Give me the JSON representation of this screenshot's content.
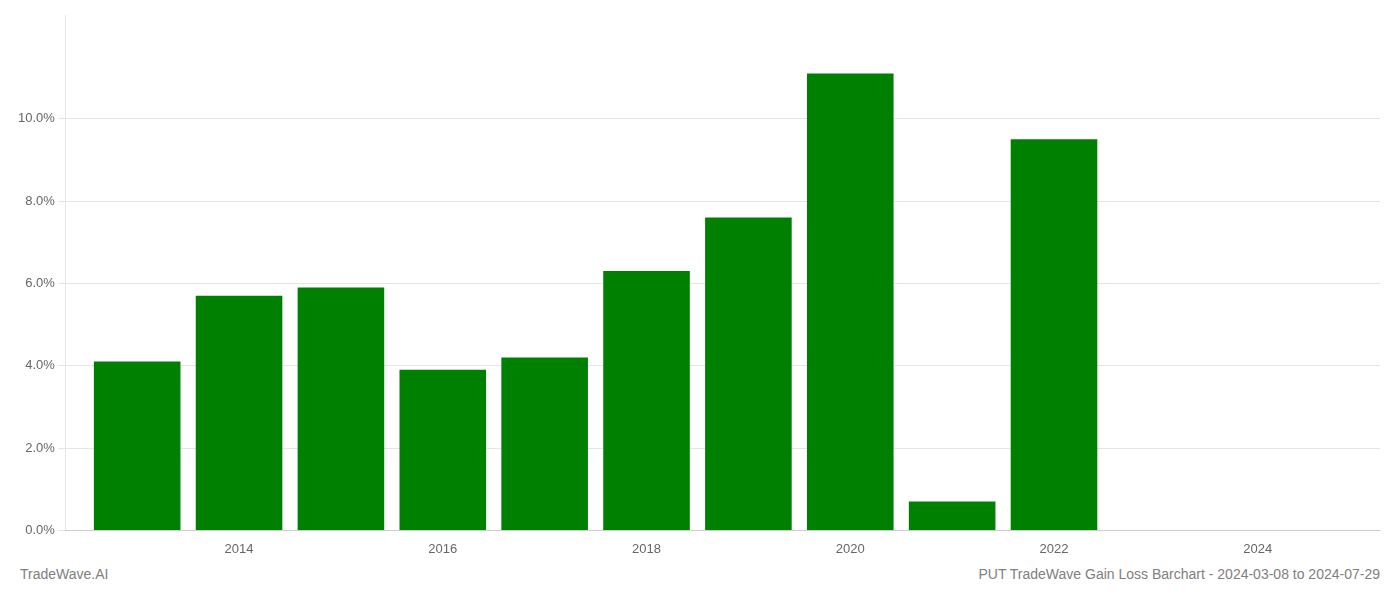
{
  "chart_data": {
    "type": "bar",
    "x": [
      2013,
      2014,
      2015,
      2016,
      2017,
      2018,
      2019,
      2020,
      2021,
      2022,
      2023
    ],
    "values": [
      0.041,
      0.057,
      0.059,
      0.039,
      0.042,
      0.063,
      0.076,
      0.111,
      0.007,
      0.095,
      0.0
    ],
    "color": "#008000",
    "xlim": [
      2012.3,
      2025.2
    ],
    "xticks": [
      2014,
      2016,
      2018,
      2020,
      2022,
      2024
    ],
    "ylim": [
      0,
      0.125
    ],
    "yticks": [
      {
        "value": 0.0,
        "label": "0.0%"
      },
      {
        "value": 0.02,
        "label": "2.0%"
      },
      {
        "value": 0.04,
        "label": "4.0%"
      },
      {
        "value": 0.06,
        "label": "6.0%"
      },
      {
        "value": 0.08,
        "label": "8.0%"
      },
      {
        "value": 0.1,
        "label": "10.0%"
      }
    ],
    "grid": "y",
    "annotations": [
      "TradeWave.AI",
      "PUT TradeWave Gain Loss Barchart - 2024-03-08 to 2024-07-29"
    ]
  }
}
